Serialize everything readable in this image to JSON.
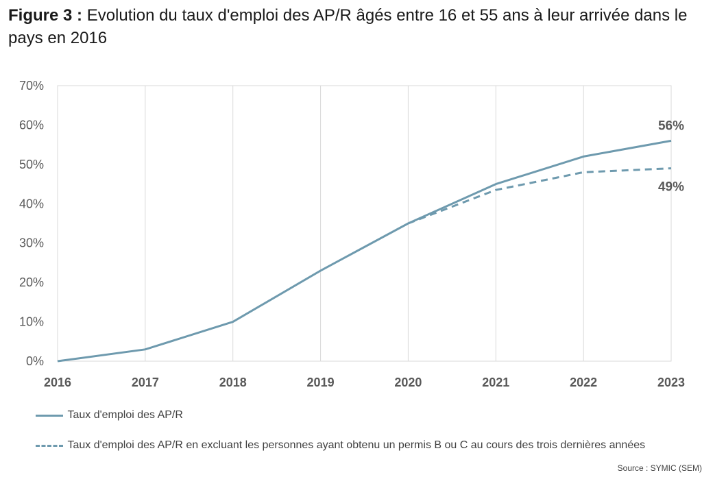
{
  "header": {
    "figure_label": "Figure 3 :",
    "title": "Evolution du taux d'emploi des AP/R âgés entre 16 et 55 ans à leur arrivée dans le pays en 2016"
  },
  "source": "Source : SYMIC (SEM)",
  "colors": {
    "line": "#6e9aae",
    "grid": "#d9d9d9",
    "plot_border": "#d9d9d9"
  },
  "chart_data": {
    "type": "line",
    "title": "",
    "xlabel": "",
    "ylabel": "",
    "x": [
      "2016",
      "2017",
      "2018",
      "2019",
      "2020",
      "2021",
      "2022",
      "2023"
    ],
    "ylim": [
      0,
      70
    ],
    "yticks": [
      "0%",
      "10%",
      "20%",
      "30%",
      "40%",
      "50%",
      "60%",
      "70%"
    ],
    "grid": "vertical",
    "legend_position": "bottom",
    "series": [
      {
        "name": "Taux d'emploi des AP/R",
        "style": "solid",
        "values": [
          0,
          3,
          10,
          23,
          35,
          45,
          52,
          56
        ],
        "end_label": "56%"
      },
      {
        "name": "Taux d'emploi des AP/R en excluant les personnes ayant obtenu un permis B ou C au cours des trois dernières années",
        "style": "dashed",
        "values": [
          null,
          null,
          null,
          null,
          35,
          43.5,
          48,
          49
        ],
        "end_label": "49%"
      }
    ]
  }
}
